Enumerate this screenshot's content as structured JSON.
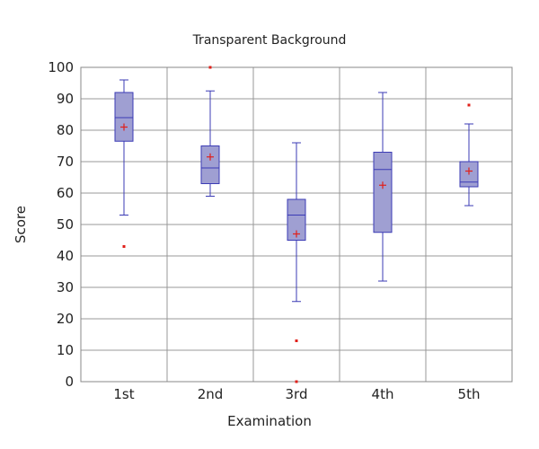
{
  "chart_data": {
    "type": "box",
    "title": "Transparent Background",
    "xlabel": "Examination",
    "ylabel": "Score",
    "ylim": [
      0,
      100
    ],
    "yticks": [
      0,
      10,
      20,
      30,
      40,
      50,
      60,
      70,
      80,
      90,
      100
    ],
    "grid": true,
    "categories": [
      "1st",
      "2nd",
      "3rd",
      "4th",
      "5th"
    ],
    "boxes": [
      {
        "label": "1st",
        "min": 53,
        "q1": 76.5,
        "median": 84,
        "q3": 92,
        "max": 96,
        "mean": 81,
        "outliers": [
          43
        ]
      },
      {
        "label": "2nd",
        "min": 59,
        "q1": 63,
        "median": 68,
        "q3": 75,
        "max": 92.5,
        "mean": 71.5,
        "outliers": [
          100
        ]
      },
      {
        "label": "3rd",
        "min": 25.5,
        "q1": 45,
        "median": 53,
        "q3": 58,
        "max": 76,
        "mean": 47,
        "outliers": [
          13,
          0
        ]
      },
      {
        "label": "4th",
        "min": 32,
        "q1": 47.5,
        "median": 67.5,
        "q3": 73,
        "max": 92,
        "mean": 62.5,
        "outliers": []
      },
      {
        "label": "5th",
        "min": 56,
        "q1": 62,
        "median": 63.5,
        "q3": 70,
        "max": 82,
        "mean": 67,
        "outliers": [
          88
        ]
      }
    ],
    "colors": {
      "box_fill": "#9f9fd2",
      "box_stroke": "#3b3bb5",
      "whisker": "#3b3bb5",
      "mean_marker": "#e0201a",
      "outlier": "#e0201a",
      "grid": "#999999",
      "frame": "#888888"
    }
  }
}
